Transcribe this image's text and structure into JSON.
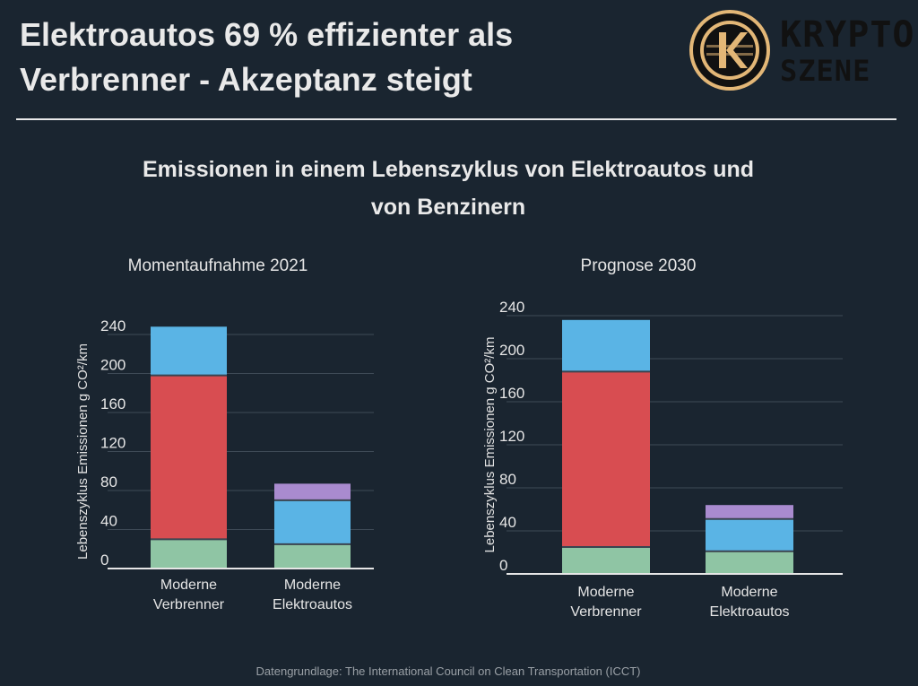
{
  "header": {
    "title_line1": "Elektroautos 69 % effizienter als",
    "title_line2": "Verbrenner - Akzeptanz steigt"
  },
  "logo": {
    "word1": "KRYPTO",
    "word2": "SZENE",
    "icon": "k-coin-icon",
    "colors": {
      "ring": "#e3b777",
      "dark": "#111111"
    }
  },
  "subtitle": {
    "line1": "Emissionen in einem Lebenszyklus von Elektroautos und",
    "line2": "von Benzinern"
  },
  "source": "Datengrundlage: The International Council on Clean Transportation (ICCT)",
  "colors": {
    "background": "#1a2530",
    "green": "#8fc5a4",
    "red": "#d84d51",
    "blue": "#5ab4e5",
    "purple": "#a98bcf",
    "grid": "#3e4a56"
  },
  "chart_data": [
    {
      "type": "bar",
      "stacked": true,
      "title": "Momentaufnahme 2021",
      "xlabel": "",
      "ylabel": "Lebenszyklus Emissionen g CO²/km",
      "ylim": [
        0,
        240
      ],
      "yticks": [
        0,
        40,
        80,
        120,
        160,
        200,
        240
      ],
      "grid": true,
      "categories": [
        "Moderne Verbrenner",
        "Moderne Elektroautos"
      ],
      "segments": [
        {
          "color": "green",
          "values": [
            30,
            25
          ]
        },
        {
          "color": "red",
          "values": [
            168,
            0
          ]
        },
        {
          "color": "blue",
          "values": [
            50,
            45
          ]
        },
        {
          "color": "purple",
          "values": [
            0,
            17
          ]
        }
      ]
    },
    {
      "type": "bar",
      "stacked": true,
      "title": "Prognose 2030",
      "xlabel": "",
      "ylabel": "Lebenszyklus Emissionen g CO²/km",
      "ylim": [
        0,
        240
      ],
      "yticks": [
        0,
        40,
        80,
        120,
        160,
        200,
        240
      ],
      "grid": true,
      "categories": [
        "Moderne Verbrenner",
        "Moderne Elektroautos"
      ],
      "segments": [
        {
          "color": "green",
          "values": [
            25,
            21
          ]
        },
        {
          "color": "red",
          "values": [
            163,
            0
          ]
        },
        {
          "color": "blue",
          "values": [
            48,
            30
          ]
        },
        {
          "color": "purple",
          "values": [
            0,
            13
          ]
        }
      ]
    }
  ]
}
